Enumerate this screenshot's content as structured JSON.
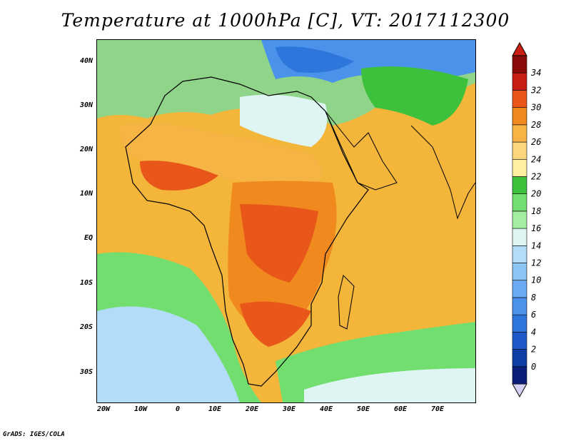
{
  "title": "Temperature at 1000hPa [C], VT: 2017112300",
  "credit": "GrADS: IGES/COLA",
  "map": {
    "lat_labels": [
      "40N",
      "30N",
      "20N",
      "10N",
      "EQ",
      "10S",
      "20S",
      "30S"
    ],
    "lon_labels": [
      "20W",
      "10W",
      "0",
      "10E",
      "20E",
      "30E",
      "40E",
      "50E",
      "60E",
      "70E"
    ]
  },
  "colorbar": {
    "levels": [
      "0",
      "2",
      "4",
      "6",
      "8",
      "10",
      "12",
      "14",
      "16",
      "18",
      "20",
      "22",
      "24",
      "26",
      "28",
      "30",
      "32",
      "34"
    ],
    "colors": [
      "#0a1e78",
      "#0f3ea6",
      "#1f5bc8",
      "#2f76dc",
      "#4a92ea",
      "#6aaaf0",
      "#8cc4f5",
      "#b2dcf8",
      "#def5f3",
      "#a5eda1",
      "#73de70",
      "#3dc13d",
      "#fff0a0",
      "#fbd67a",
      "#f5b444",
      "#f08a1e",
      "#e8561a",
      "#c81e14",
      "#8a0a0a"
    ]
  }
}
